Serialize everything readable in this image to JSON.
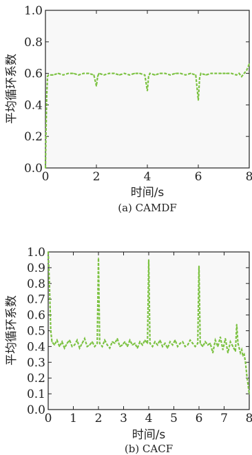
{
  "chart_data": [
    {
      "type": "line",
      "caption": "(a) CAMDF",
      "xlabel": "时间/s",
      "ylabel": "平均循环系数",
      "xlim": [
        0,
        8
      ],
      "ylim": [
        0,
        1.0
      ],
      "xticks": [
        "0",
        "2",
        "4",
        "6",
        "8"
      ],
      "yticks": [
        "0.0",
        "0.2",
        "0.4",
        "0.6",
        "0.8",
        "1.0"
      ],
      "line_color": "#7cc242",
      "line_style": "dashed",
      "series": [
        {
          "x": [
            0,
            0.02,
            0.05,
            0.08,
            0.12,
            0.3,
            0.5,
            0.7,
            0.9,
            1.1,
            1.3,
            1.5,
            1.7,
            1.9,
            2.0,
            2.05,
            2.1,
            2.3,
            2.5,
            2.7,
            2.9,
            3.1,
            3.3,
            3.5,
            3.7,
            3.9,
            4.0,
            4.05,
            4.1,
            4.3,
            4.5,
            4.7,
            4.9,
            5.1,
            5.3,
            5.5,
            5.7,
            5.9,
            6.0,
            6.05,
            6.1,
            6.3,
            6.5,
            6.7,
            6.9,
            7.1,
            7.3,
            7.5,
            7.6,
            7.7,
            7.8,
            7.9,
            8.0
          ],
          "y": [
            0.0,
            0.2,
            0.45,
            0.58,
            0.59,
            0.59,
            0.6,
            0.59,
            0.6,
            0.6,
            0.59,
            0.6,
            0.6,
            0.59,
            0.52,
            0.58,
            0.6,
            0.59,
            0.6,
            0.6,
            0.59,
            0.6,
            0.59,
            0.6,
            0.6,
            0.59,
            0.49,
            0.58,
            0.6,
            0.59,
            0.6,
            0.6,
            0.59,
            0.6,
            0.6,
            0.59,
            0.6,
            0.59,
            0.43,
            0.57,
            0.6,
            0.59,
            0.6,
            0.6,
            0.6,
            0.6,
            0.6,
            0.59,
            0.6,
            0.58,
            0.6,
            0.62,
            0.66
          ]
        }
      ]
    },
    {
      "type": "line",
      "caption": "(b) CACF",
      "xlabel": "时间/s",
      "ylabel": "平均循环系数",
      "xlim": [
        0,
        8
      ],
      "ylim": [
        0,
        1.0
      ],
      "xticks": [
        "0",
        "1",
        "2",
        "3",
        "4",
        "5",
        "6",
        "7",
        "8"
      ],
      "yticks": [
        "0.0",
        "0.1",
        "0.2",
        "0.3",
        "0.4",
        "0.5",
        "0.6",
        "0.7",
        "0.8",
        "0.9",
        "1.0"
      ],
      "line_color": "#7cc242",
      "line_style": "dashed",
      "series": [
        {
          "x": [
            0,
            0.05,
            0.1,
            0.15,
            0.25,
            0.35,
            0.45,
            0.55,
            0.65,
            0.75,
            0.85,
            0.95,
            1.05,
            1.15,
            1.25,
            1.35,
            1.45,
            1.55,
            1.65,
            1.75,
            1.85,
            1.95,
            2.0,
            2.05,
            2.15,
            2.25,
            2.35,
            2.45,
            2.55,
            2.65,
            2.75,
            2.85,
            2.95,
            3.05,
            3.15,
            3.25,
            3.35,
            3.45,
            3.55,
            3.65,
            3.75,
            3.85,
            3.95,
            4.0,
            4.05,
            4.15,
            4.25,
            4.35,
            4.45,
            4.55,
            4.65,
            4.75,
            4.85,
            4.95,
            5.05,
            5.15,
            5.25,
            5.35,
            5.45,
            5.55,
            5.65,
            5.75,
            5.85,
            5.95,
            6.0,
            6.05,
            6.15,
            6.25,
            6.35,
            6.45,
            6.55,
            6.65,
            6.75,
            6.85,
            6.95,
            7.05,
            7.15,
            7.25,
            7.35,
            7.45,
            7.5,
            7.55,
            7.6,
            7.65,
            7.7,
            7.75,
            7.8,
            7.85,
            7.9,
            7.95,
            8.0
          ],
          "y": [
            1.0,
            0.8,
            0.5,
            0.43,
            0.41,
            0.44,
            0.4,
            0.43,
            0.39,
            0.42,
            0.44,
            0.4,
            0.41,
            0.44,
            0.39,
            0.42,
            0.45,
            0.4,
            0.41,
            0.43,
            0.4,
            0.42,
            0.96,
            0.42,
            0.4,
            0.44,
            0.41,
            0.39,
            0.43,
            0.42,
            0.45,
            0.4,
            0.41,
            0.43,
            0.4,
            0.44,
            0.41,
            0.42,
            0.39,
            0.43,
            0.41,
            0.44,
            0.42,
            0.95,
            0.42,
            0.4,
            0.43,
            0.41,
            0.44,
            0.4,
            0.42,
            0.39,
            0.43,
            0.41,
            0.44,
            0.4,
            0.42,
            0.43,
            0.4,
            0.41,
            0.44,
            0.42,
            0.4,
            0.42,
            0.91,
            0.42,
            0.4,
            0.43,
            0.41,
            0.42,
            0.36,
            0.44,
            0.4,
            0.46,
            0.38,
            0.45,
            0.36,
            0.43,
            0.4,
            0.37,
            0.54,
            0.42,
            0.39,
            0.36,
            0.38,
            0.34,
            0.35,
            0.3,
            0.22,
            0.16,
            0.1
          ]
        }
      ]
    }
  ]
}
